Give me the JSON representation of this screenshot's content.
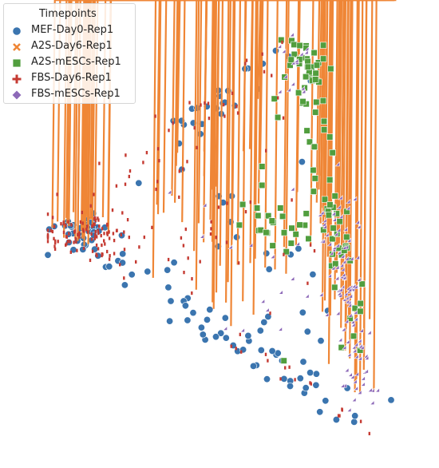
{
  "chart_data": {
    "type": "scatter",
    "title": "",
    "xlabel": "",
    "ylabel": "",
    "axes_visible": false,
    "grid": false,
    "legend": {
      "title": "Timepoints",
      "placement": "top-left"
    },
    "series": [
      {
        "name": "MEF-Day0-Rep1",
        "marker": "circle",
        "color": "#3b75af"
      },
      {
        "name": "A2S-Day6-Rep1",
        "marker": "x",
        "color": "#ef8636"
      },
      {
        "name": "A2S-mESCs-Rep1",
        "marker": "square",
        "color": "#519e3e"
      },
      {
        "name": "FBS-Day6-Rep1",
        "marker": "plus",
        "color": "#c53a32"
      },
      {
        "name": "FBS-mESCs-Rep1",
        "marker": "diamond",
        "color": "#8d69b8"
      }
    ]
  }
}
